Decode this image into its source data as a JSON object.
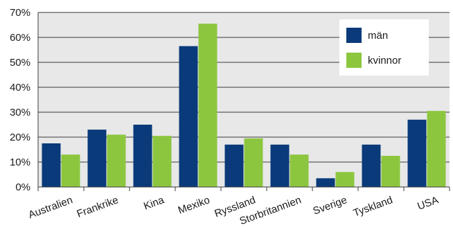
{
  "chart_data": {
    "type": "bar",
    "title": "",
    "xlabel": "",
    "ylabel": "",
    "categories": [
      "Australien",
      "Frankrike",
      "Kina",
      "Mexiko",
      "Ryssland",
      "Storbritannien",
      "Sverige",
      "Tyskland",
      "USA"
    ],
    "series": [
      {
        "name": "män",
        "color": "#0a3a7a",
        "values": [
          17.5,
          23,
          25,
          56.5,
          17,
          17,
          3.5,
          17,
          27
        ]
      },
      {
        "name": "kvinnor",
        "color": "#8cc63f",
        "values": [
          13,
          21,
          20.5,
          65.5,
          19.5,
          13,
          6,
          12.5,
          30.5
        ]
      }
    ],
    "ylim": [
      0,
      70
    ],
    "yticks": [
      "0%",
      "10%",
      "20%",
      "30%",
      "40%",
      "50%",
      "60%",
      "70%"
    ],
    "grid": true,
    "legend": "top-right",
    "background": "#e8e8e8"
  }
}
